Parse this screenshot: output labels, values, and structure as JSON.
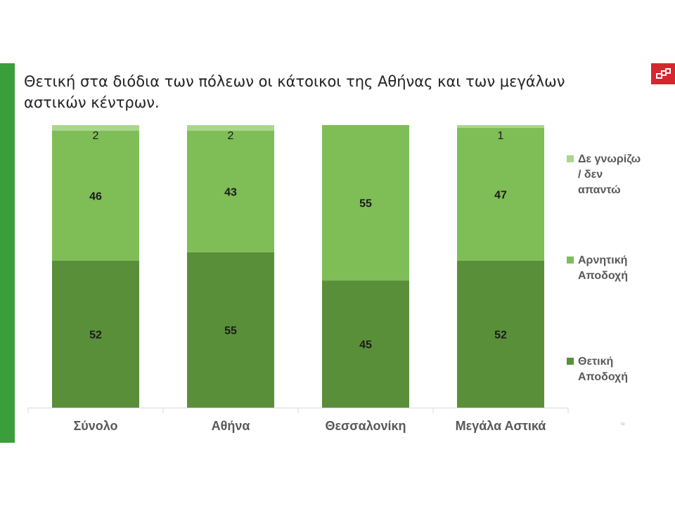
{
  "slide": {
    "title": "Θετική στα διόδια των πόλεων οι κάτοικοι της Αθήνας και των μεγάλων αστικών κέντρων.",
    "page_number": "50",
    "logo_icon": "brand-logo-icon"
  },
  "colors": {
    "accent_bar": "#3a9e3a",
    "positive": "#5a8f3a",
    "negative": "#7fbd57",
    "dont_know": "#a9d88d",
    "logo": "#d8262e"
  },
  "chart_data": {
    "type": "bar",
    "stacked": true,
    "categories": [
      "Σύνολο",
      "Αθήνα",
      "Θεσσαλονίκη",
      "Μεγάλα Αστικά"
    ],
    "series": [
      {
        "name": "Θετική Αποδοχή",
        "values": [
          52,
          55,
          45,
          52
        ],
        "labels": [
          "52",
          "55",
          "45",
          "52"
        ],
        "color": "#5a8f3a"
      },
      {
        "name": "Αρνητική Αποδοχή",
        "values": [
          46,
          43,
          55,
          47
        ],
        "labels": [
          "46",
          "43",
          "55",
          "47"
        ],
        "color": "#7fbd57"
      },
      {
        "name": "Δε γνωρίζω / δεν απαντώ",
        "values": [
          2,
          2,
          0,
          1
        ],
        "labels": [
          "2",
          "2",
          "",
          "1"
        ],
        "color": "#a9d88d"
      }
    ],
    "ylim": [
      0,
      100
    ],
    "grid": false,
    "legend_position": "right",
    "legend_order": [
      2,
      1,
      0
    ],
    "legend_lines": [
      [
        "Δε γνωρίζω",
        "/ δεν",
        "απαντώ"
      ],
      [
        "Αρνητική",
        "Αποδοχή"
      ],
      [
        "Θετική",
        "Αποδοχή"
      ]
    ]
  }
}
